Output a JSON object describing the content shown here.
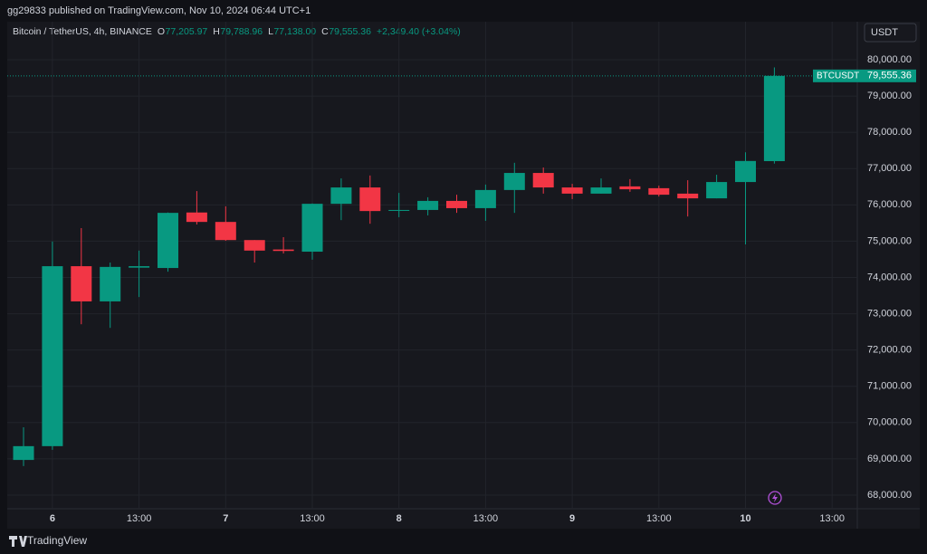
{
  "header": {
    "publisher": "gg29833 published on TradingView.com, Nov 10, 2024 06:44 UTC+1"
  },
  "footer": {
    "brand": "TradingView"
  },
  "chart_data": {
    "type": "candlestick",
    "legend": {
      "symbol": "Bitcoin / TetherUS, 4h, BINANCE",
      "o": "O",
      "o_value": "77,205.97",
      "h": "H",
      "h_value": "79,788.96",
      "l": "L",
      "l_value": "77,138.00",
      "c": "C",
      "c_value": "79,555.36",
      "change": "+2,349.40 (+3.04%)"
    },
    "currency": "USDT",
    "price_tag": "BTCUSDT",
    "categories": [
      null,
      "6",
      null,
      null,
      "13:00",
      null,
      null,
      "7",
      null,
      null,
      "13:00",
      null,
      null,
      "8",
      null,
      null,
      "13:00",
      null,
      null,
      "9",
      null,
      null,
      "13:00",
      null,
      null,
      "10",
      null,
      null,
      "13:00"
    ],
    "open": [
      68970,
      69350,
      74310,
      73340,
      74270,
      74260,
      75790,
      75530,
      75030,
      74770,
      74710,
      76030,
      76480,
      75840,
      75860,
      76110,
      75910,
      76410,
      76880,
      76480,
      76310,
      76510,
      76460,
      76310,
      76180,
      76630,
      77205.97,
      null,
      null
    ],
    "high": [
      69870,
      74990,
      75360,
      74410,
      74740,
      75790,
      76380,
      75960,
      75030,
      75110,
      76040,
      76730,
      76810,
      76330,
      76210,
      76280,
      76560,
      77160,
      77030,
      76580,
      76730,
      76710,
      76530,
      76680,
      76830,
      77450,
      79788.96,
      null,
      null
    ],
    "low": [
      68800,
      69250,
      72710,
      72610,
      73460,
      74160,
      75460,
      75010,
      74410,
      74660,
      74490,
      75580,
      75480,
      75660,
      75710,
      75780,
      75560,
      75780,
      76310,
      76160,
      76310,
      76360,
      76230,
      75680,
      76180,
      74910,
      77138.0,
      null,
      null
    ],
    "close": [
      69350,
      74310,
      73340,
      74290,
      74310,
      75780,
      75530,
      75030,
      74740,
      74730,
      76030,
      76480,
      75830,
      75860,
      76110,
      75910,
      76410,
      76880,
      76480,
      76310,
      76480,
      76430,
      76280,
      76180,
      76630,
      77210,
      79555.36,
      null,
      null
    ],
    "up_color": "#089981",
    "down_color": "#f23645",
    "ylim": [
      67625,
      81048
    ],
    "yticks": [
      {
        "value": 68000,
        "label": "68,000.00"
      },
      {
        "value": 69000,
        "label": "69,000.00"
      },
      {
        "value": 70000,
        "label": "70,000.00"
      },
      {
        "value": 71000,
        "label": "71,000.00"
      },
      {
        "value": 72000,
        "label": "72,000.00"
      },
      {
        "value": 73000,
        "label": "73,000.00"
      },
      {
        "value": 74000,
        "label": "74,000.00"
      },
      {
        "value": 75000,
        "label": "75,000.00"
      },
      {
        "value": 76000,
        "label": "76,000.00"
      },
      {
        "value": 77000,
        "label": "77,000.00"
      },
      {
        "value": 78000,
        "label": "78,000.00"
      },
      {
        "value": 79000,
        "label": "79,000.00"
      },
      {
        "value": 80000,
        "label": "80,000.00"
      }
    ],
    "grid": true
  }
}
